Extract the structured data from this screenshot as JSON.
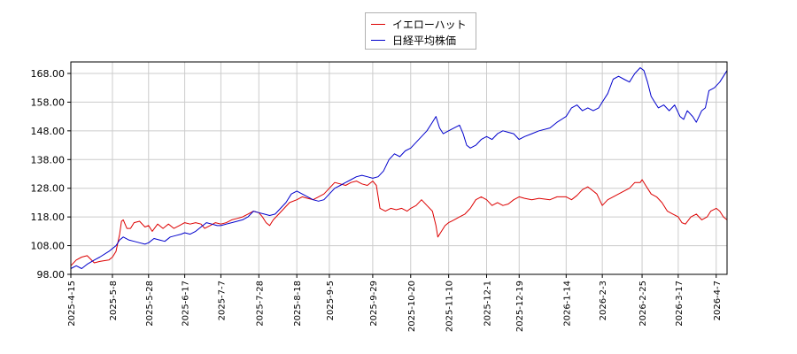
{
  "chart_data": {
    "type": "line",
    "title": "",
    "xlabel": "",
    "ylabel": "",
    "ylim": [
      98,
      172
    ],
    "y_ticks": [
      "98.00",
      "108.00",
      "118.00",
      "128.00",
      "138.00",
      "148.00",
      "158.00",
      "168.00"
    ],
    "x_ticks": [
      "2025-4-15",
      "2025-5-8",
      "2025-5-28",
      "2025-6-17",
      "2025-7-7",
      "2025-7-28",
      "2025-8-18",
      "2025-9-5",
      "2025-9-29",
      "2025-10-20",
      "2025-11-10",
      "2025-12-1",
      "2025-12-19",
      "2026-1-14",
      "2026-2-3",
      "2026-2-25",
      "2026-3-17",
      "2026-4-7"
    ],
    "grid": true,
    "legend_placement": "top-center",
    "series": [
      {
        "name": "イエローハット",
        "color": "#dd0000",
        "points": [
          [
            "2025-4-15",
            101
          ],
          [
            "2025-4-18",
            103
          ],
          [
            "2025-4-21",
            104
          ],
          [
            "2025-4-24",
            104.5
          ],
          [
            "2025-4-28",
            102
          ],
          [
            "2025-5-1",
            102.5
          ],
          [
            "2025-5-6",
            103
          ],
          [
            "2025-5-8",
            104
          ],
          [
            "2025-5-10",
            106
          ],
          [
            "2025-5-12",
            112
          ],
          [
            "2025-5-13",
            116.5
          ],
          [
            "2025-5-14",
            117
          ],
          [
            "2025-5-16",
            114
          ],
          [
            "2025-5-18",
            114
          ],
          [
            "2025-5-20",
            116
          ],
          [
            "2025-5-23",
            116.5
          ],
          [
            "2025-5-26",
            114.5
          ],
          [
            "2025-5-28",
            115
          ],
          [
            "2025-5-30",
            113
          ],
          [
            "2025-6-2",
            115.5
          ],
          [
            "2025-6-5",
            114
          ],
          [
            "2025-6-8",
            115.5
          ],
          [
            "2025-6-11",
            114
          ],
          [
            "2025-6-14",
            115
          ],
          [
            "2025-6-17",
            116
          ],
          [
            "2025-6-20",
            115.5
          ],
          [
            "2025-6-23",
            116
          ],
          [
            "2025-6-26",
            115.5
          ],
          [
            "2025-6-28",
            114
          ],
          [
            "2025-7-1",
            115
          ],
          [
            "2025-7-4",
            116
          ],
          [
            "2025-7-7",
            115.5
          ],
          [
            "2025-7-10",
            116
          ],
          [
            "2025-7-13",
            117
          ],
          [
            "2025-7-16",
            117.5
          ],
          [
            "2025-7-19",
            118
          ],
          [
            "2025-7-22",
            119
          ],
          [
            "2025-7-25",
            120
          ],
          [
            "2025-7-28",
            119.5
          ],
          [
            "2025-7-30",
            118
          ],
          [
            "2025-8-1",
            116
          ],
          [
            "2025-8-3",
            115
          ],
          [
            "2025-8-5",
            117
          ],
          [
            "2025-8-8",
            119
          ],
          [
            "2025-8-11",
            121
          ],
          [
            "2025-8-14",
            123
          ],
          [
            "2025-8-18",
            124
          ],
          [
            "2025-8-21",
            125
          ],
          [
            "2025-8-24",
            124.5
          ],
          [
            "2025-8-27",
            124
          ],
          [
            "2025-8-30",
            125
          ],
          [
            "2025-9-2",
            126
          ],
          [
            "2025-9-5",
            128
          ],
          [
            "2025-9-8",
            130
          ],
          [
            "2025-9-11",
            129.5
          ],
          [
            "2025-9-14",
            129
          ],
          [
            "2025-9-17",
            130
          ],
          [
            "2025-9-20",
            130.5
          ],
          [
            "2025-9-23",
            129.5
          ],
          [
            "2025-9-26",
            129
          ],
          [
            "2025-9-29",
            130.5
          ],
          [
            "2025-10-1",
            129
          ],
          [
            "2025-10-3",
            121
          ],
          [
            "2025-10-6",
            120
          ],
          [
            "2025-10-9",
            121
          ],
          [
            "2025-10-12",
            120.5
          ],
          [
            "2025-10-15",
            121
          ],
          [
            "2025-10-18",
            120
          ],
          [
            "2025-10-20",
            121
          ],
          [
            "2025-10-23",
            122
          ],
          [
            "2025-10-26",
            124
          ],
          [
            "2025-10-29",
            122
          ],
          [
            "2025-11-1",
            120
          ],
          [
            "2025-11-3",
            115
          ],
          [
            "2025-11-4",
            111
          ],
          [
            "2025-11-6",
            113
          ],
          [
            "2025-11-8",
            115
          ],
          [
            "2025-11-10",
            116
          ],
          [
            "2025-11-13",
            117
          ],
          [
            "2025-11-16",
            118
          ],
          [
            "2025-11-19",
            119
          ],
          [
            "2025-11-22",
            121
          ],
          [
            "2025-11-25",
            124
          ],
          [
            "2025-11-28",
            125
          ],
          [
            "2025-12-1",
            124
          ],
          [
            "2025-12-4",
            122
          ],
          [
            "2025-12-7",
            123
          ],
          [
            "2025-12-10",
            122
          ],
          [
            "2025-12-13",
            122.5
          ],
          [
            "2025-12-16",
            124
          ],
          [
            "2025-12-19",
            125
          ],
          [
            "2025-12-22",
            124.5
          ],
          [
            "2025-12-26",
            124
          ],
          [
            "2025-12-30",
            124.5
          ],
          [
            "2026-1-5",
            124
          ],
          [
            "2026-1-9",
            125
          ],
          [
            "2026-1-14",
            125
          ],
          [
            "2026-1-17",
            124
          ],
          [
            "2026-1-20",
            125.5
          ],
          [
            "2026-1-23",
            127.5
          ],
          [
            "2026-1-26",
            128.5
          ],
          [
            "2026-1-29",
            127
          ],
          [
            "2026-1-31",
            126
          ],
          [
            "2026-2-3",
            122
          ],
          [
            "2026-2-6",
            124
          ],
          [
            "2026-2-9",
            125
          ],
          [
            "2026-2-12",
            126
          ],
          [
            "2026-2-15",
            127
          ],
          [
            "2026-2-18",
            128
          ],
          [
            "2026-2-21",
            130
          ],
          [
            "2026-2-24",
            130
          ],
          [
            "2026-2-25",
            131
          ],
          [
            "2026-2-27",
            129
          ],
          [
            "2026-3-2",
            126
          ],
          [
            "2026-3-5",
            125
          ],
          [
            "2026-3-8",
            123
          ],
          [
            "2026-3-11",
            120
          ],
          [
            "2026-3-14",
            119
          ],
          [
            "2026-3-17",
            118
          ],
          [
            "2026-3-19",
            116
          ],
          [
            "2026-3-21",
            115.5
          ],
          [
            "2026-3-24",
            118
          ],
          [
            "2026-3-27",
            119
          ],
          [
            "2026-3-30",
            117
          ],
          [
            "2026-4-2",
            118
          ],
          [
            "2026-4-4",
            120
          ],
          [
            "2026-4-7",
            121
          ],
          [
            "2026-4-9",
            120
          ],
          [
            "2026-4-11",
            118
          ],
          [
            "2026-4-13",
            117
          ]
        ]
      },
      {
        "name": "日経平均株価",
        "color": "#0000cc",
        "points": [
          [
            "2025-4-15",
            100
          ],
          [
            "2025-4-18",
            101
          ],
          [
            "2025-4-21",
            100
          ],
          [
            "2025-4-24",
            101.5
          ],
          [
            "2025-4-28",
            103
          ],
          [
            "2025-5-1",
            104
          ],
          [
            "2025-5-6",
            106
          ],
          [
            "2025-5-8",
            107
          ],
          [
            "2025-5-10",
            108
          ],
          [
            "2025-5-12",
            110
          ],
          [
            "2025-5-14",
            111
          ],
          [
            "2025-5-17",
            110
          ],
          [
            "2025-5-20",
            109.5
          ],
          [
            "2025-5-23",
            109
          ],
          [
            "2025-5-26",
            108.5
          ],
          [
            "2025-5-28",
            109
          ],
          [
            "2025-5-31",
            110.5
          ],
          [
            "2025-6-3",
            110
          ],
          [
            "2025-6-6",
            109.5
          ],
          [
            "2025-6-9",
            111
          ],
          [
            "2025-6-12",
            111.5
          ],
          [
            "2025-6-15",
            112
          ],
          [
            "2025-6-17",
            112.5
          ],
          [
            "2025-6-20",
            112
          ],
          [
            "2025-6-23",
            113
          ],
          [
            "2025-6-26",
            114.5
          ],
          [
            "2025-6-29",
            116
          ],
          [
            "2025-7-2",
            115.5
          ],
          [
            "2025-7-5",
            115
          ],
          [
            "2025-7-7",
            115
          ],
          [
            "2025-7-10",
            115.5
          ],
          [
            "2025-7-13",
            116
          ],
          [
            "2025-7-16",
            116.5
          ],
          [
            "2025-7-19",
            117
          ],
          [
            "2025-7-22",
            118
          ],
          [
            "2025-7-25",
            120
          ],
          [
            "2025-7-28",
            119.5
          ],
          [
            "2025-7-31",
            119
          ],
          [
            "2025-8-3",
            118.5
          ],
          [
            "2025-8-6",
            119
          ],
          [
            "2025-8-9",
            121
          ],
          [
            "2025-8-12",
            123
          ],
          [
            "2025-8-15",
            126
          ],
          [
            "2025-8-18",
            127
          ],
          [
            "2025-8-21",
            126
          ],
          [
            "2025-8-24",
            125
          ],
          [
            "2025-8-27",
            124
          ],
          [
            "2025-8-30",
            123.5
          ],
          [
            "2025-9-2",
            124
          ],
          [
            "2025-9-5",
            126
          ],
          [
            "2025-9-8",
            128
          ],
          [
            "2025-9-11",
            129
          ],
          [
            "2025-9-14",
            130
          ],
          [
            "2025-9-17",
            131
          ],
          [
            "2025-9-20",
            132
          ],
          [
            "2025-9-23",
            132.5
          ],
          [
            "2025-9-26",
            132
          ],
          [
            "2025-9-29",
            131.5
          ],
          [
            "2025-10-2",
            132
          ],
          [
            "2025-10-5",
            134
          ],
          [
            "2025-10-8",
            138
          ],
          [
            "2025-10-11",
            140
          ],
          [
            "2025-10-14",
            139
          ],
          [
            "2025-10-17",
            141
          ],
          [
            "2025-10-20",
            142
          ],
          [
            "2025-10-23",
            144
          ],
          [
            "2025-10-26",
            146
          ],
          [
            "2025-10-29",
            148
          ],
          [
            "2025-11-1",
            151
          ],
          [
            "2025-11-3",
            153
          ],
          [
            "2025-11-5",
            149
          ],
          [
            "2025-11-7",
            147
          ],
          [
            "2025-11-10",
            148
          ],
          [
            "2025-11-13",
            149
          ],
          [
            "2025-11-16",
            150
          ],
          [
            "2025-11-18",
            147
          ],
          [
            "2025-11-20",
            143
          ],
          [
            "2025-11-22",
            142
          ],
          [
            "2025-11-25",
            143
          ],
          [
            "2025-11-28",
            145
          ],
          [
            "2025-12-1",
            146
          ],
          [
            "2025-12-4",
            145
          ],
          [
            "2025-12-7",
            147
          ],
          [
            "2025-12-10",
            148
          ],
          [
            "2025-12-13",
            147.5
          ],
          [
            "2025-12-16",
            147
          ],
          [
            "2025-12-19",
            145
          ],
          [
            "2025-12-22",
            146
          ],
          [
            "2025-12-26",
            147
          ],
          [
            "2025-12-30",
            148
          ],
          [
            "2026-1-5",
            149
          ],
          [
            "2026-1-9",
            151
          ],
          [
            "2026-1-14",
            153
          ],
          [
            "2026-1-17",
            156
          ],
          [
            "2026-1-20",
            157
          ],
          [
            "2026-1-23",
            155
          ],
          [
            "2026-1-26",
            156
          ],
          [
            "2026-1-29",
            155
          ],
          [
            "2026-2-1",
            156
          ],
          [
            "2026-2-3",
            158
          ],
          [
            "2026-2-6",
            161
          ],
          [
            "2026-2-9",
            166
          ],
          [
            "2026-2-12",
            167
          ],
          [
            "2026-2-15",
            166
          ],
          [
            "2026-2-18",
            165
          ],
          [
            "2026-2-21",
            168
          ],
          [
            "2026-2-24",
            170
          ],
          [
            "2026-2-26",
            169
          ],
          [
            "2026-2-28",
            165
          ],
          [
            "2026-3-2",
            160
          ],
          [
            "2026-3-4",
            158
          ],
          [
            "2026-3-6",
            156
          ],
          [
            "2026-3-9",
            157
          ],
          [
            "2026-3-12",
            155
          ],
          [
            "2026-3-15",
            157
          ],
          [
            "2026-3-18",
            153
          ],
          [
            "2026-3-20",
            152
          ],
          [
            "2026-3-22",
            155
          ],
          [
            "2026-3-25",
            153
          ],
          [
            "2026-3-27",
            151
          ],
          [
            "2026-3-30",
            155
          ],
          [
            "2026-4-1",
            156
          ],
          [
            "2026-4-3",
            162
          ],
          [
            "2026-4-6",
            163
          ],
          [
            "2026-4-9",
            165
          ],
          [
            "2026-4-11",
            167
          ],
          [
            "2026-4-13",
            169
          ]
        ]
      }
    ]
  }
}
